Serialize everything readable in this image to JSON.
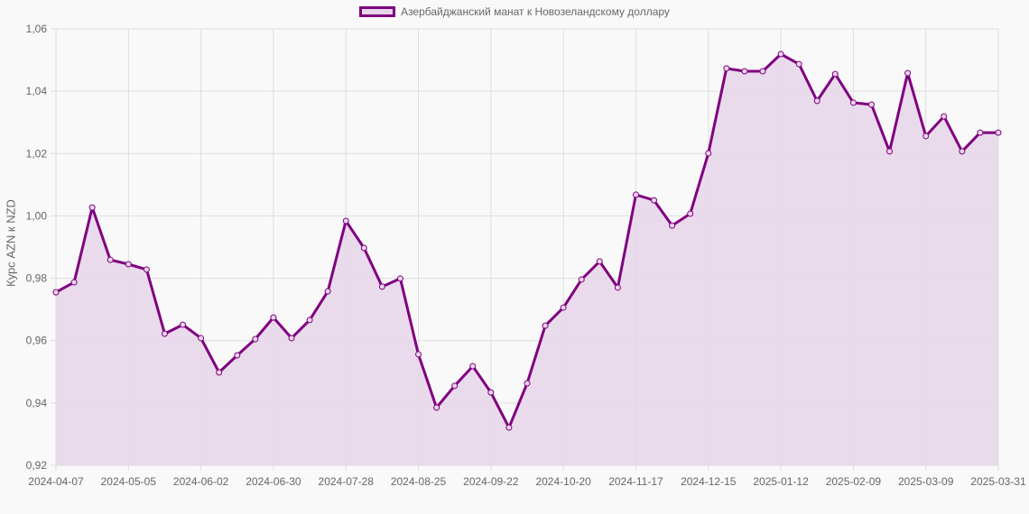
{
  "legend": {
    "label": "Азербайджанский манат к Новозеландскому доллару"
  },
  "colors": {
    "line": "#800080",
    "fill": "#e8d6ea",
    "grid": "#dddddd",
    "text": "#666666",
    "background": "#f9f9f9"
  },
  "chart_data": {
    "type": "line",
    "title": "",
    "xlabel": "",
    "ylabel": "Курс AZN к NZD",
    "ylim": [
      0.92,
      1.06
    ],
    "y_ticks": [
      "0,92",
      "0,94",
      "0,96",
      "0,98",
      "1,00",
      "1,02",
      "1,04",
      "1,06"
    ],
    "x_tick_labels": [
      "2024-04-07",
      "2024-05-05",
      "2024-06-02",
      "2024-06-30",
      "2024-07-28",
      "2024-08-25",
      "2024-09-22",
      "2024-10-20",
      "2024-11-17",
      "2024-12-15",
      "2025-01-12",
      "2025-02-09",
      "2025-03-09",
      "2025-03-31"
    ],
    "legend_position": "top",
    "grid": true,
    "series": [
      {
        "name": "Азербайджанский манат к Новозеландскому доллару",
        "x": [
          "2024-04-07",
          "2024-04-14",
          "2024-04-21",
          "2024-04-28",
          "2024-05-05",
          "2024-05-12",
          "2024-05-19",
          "2024-05-26",
          "2024-06-02",
          "2024-06-09",
          "2024-06-16",
          "2024-06-23",
          "2024-06-30",
          "2024-07-07",
          "2024-07-14",
          "2024-07-21",
          "2024-07-28",
          "2024-08-04",
          "2024-08-11",
          "2024-08-18",
          "2024-08-25",
          "2024-09-01",
          "2024-09-08",
          "2024-09-15",
          "2024-09-22",
          "2024-09-29",
          "2024-10-06",
          "2024-10-13",
          "2024-10-20",
          "2024-10-27",
          "2024-11-03",
          "2024-11-10",
          "2024-11-17",
          "2024-11-24",
          "2024-12-01",
          "2024-12-08",
          "2024-12-15",
          "2024-12-22",
          "2024-12-29",
          "2025-01-05",
          "2025-01-12",
          "2025-01-19",
          "2025-01-26",
          "2025-02-02",
          "2025-02-09",
          "2025-02-16",
          "2025-02-23",
          "2025-03-02",
          "2025-03-09",
          "2025-03-16",
          "2025-03-23",
          "2025-03-30",
          "2025-03-31"
        ],
        "values": [
          0.9755,
          0.9787,
          1.0027,
          0.9859,
          0.9845,
          0.9828,
          0.9622,
          0.9651,
          0.9608,
          0.9498,
          0.9553,
          0.9605,
          0.9674,
          0.9608,
          0.9666,
          0.9758,
          0.9984,
          0.9897,
          0.9773,
          0.9799,
          0.9556,
          0.9385,
          0.9455,
          0.9518,
          0.9434,
          0.9321,
          0.9463,
          0.9648,
          0.9706,
          0.9796,
          0.9854,
          0.977,
          1.0068,
          1.005,
          0.9969,
          1.0007,
          1.0201,
          1.0473,
          1.0464,
          1.0464,
          1.0519,
          1.0487,
          1.0369,
          1.0455,
          1.0363,
          1.0357,
          1.0207,
          1.0458,
          1.0256,
          1.0319,
          1.0207,
          1.0267,
          1.0267
        ]
      }
    ]
  }
}
